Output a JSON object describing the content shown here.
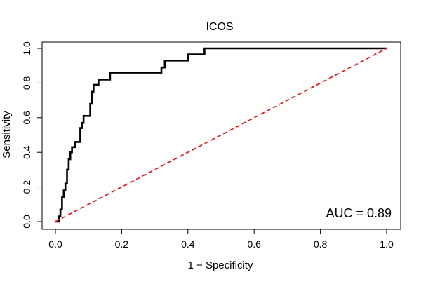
{
  "chart_data": {
    "type": "line",
    "title": "ICOS",
    "xlabel": "1 − Specificity",
    "ylabel": "Sensitivity",
    "xlim": [
      0.0,
      1.0
    ],
    "ylim": [
      0.0,
      1.0
    ],
    "x_ticks": [
      "0.0",
      "0.2",
      "0.4",
      "0.6",
      "0.8",
      "1.0"
    ],
    "y_ticks": [
      "0.0",
      "0.2",
      "0.4",
      "0.6",
      "0.8",
      "1.0"
    ],
    "grid": false,
    "annotation": "AUC = 0.89",
    "series": [
      {
        "color": "#000000",
        "style": "solid",
        "points": [
          [
            0.0,
            0.0
          ],
          [
            0.01,
            0.0
          ],
          [
            0.01,
            0.03
          ],
          [
            0.015,
            0.03
          ],
          [
            0.015,
            0.07
          ],
          [
            0.02,
            0.07
          ],
          [
            0.02,
            0.14
          ],
          [
            0.025,
            0.14
          ],
          [
            0.025,
            0.18
          ],
          [
            0.03,
            0.18
          ],
          [
            0.03,
            0.22
          ],
          [
            0.035,
            0.22
          ],
          [
            0.035,
            0.3
          ],
          [
            0.04,
            0.3
          ],
          [
            0.04,
            0.36
          ],
          [
            0.045,
            0.36
          ],
          [
            0.045,
            0.4
          ],
          [
            0.05,
            0.4
          ],
          [
            0.05,
            0.43
          ],
          [
            0.06,
            0.43
          ],
          [
            0.06,
            0.46
          ],
          [
            0.075,
            0.46
          ],
          [
            0.075,
            0.54
          ],
          [
            0.08,
            0.54
          ],
          [
            0.08,
            0.57
          ],
          [
            0.085,
            0.57
          ],
          [
            0.085,
            0.61
          ],
          [
            0.105,
            0.61
          ],
          [
            0.105,
            0.68
          ],
          [
            0.11,
            0.68
          ],
          [
            0.11,
            0.75
          ],
          [
            0.115,
            0.75
          ],
          [
            0.115,
            0.79
          ],
          [
            0.13,
            0.79
          ],
          [
            0.13,
            0.82
          ],
          [
            0.165,
            0.82
          ],
          [
            0.165,
            0.86
          ],
          [
            0.32,
            0.86
          ],
          [
            0.32,
            0.89
          ],
          [
            0.33,
            0.89
          ],
          [
            0.33,
            0.93
          ],
          [
            0.4,
            0.93
          ],
          [
            0.4,
            0.965
          ],
          [
            0.45,
            0.965
          ],
          [
            0.45,
            1.0
          ],
          [
            1.0,
            1.0
          ]
        ]
      },
      {
        "color": "#ff0000",
        "style": "dashed",
        "points": [
          [
            0.0,
            0.0
          ],
          [
            1.0,
            1.0
          ]
        ]
      }
    ]
  }
}
